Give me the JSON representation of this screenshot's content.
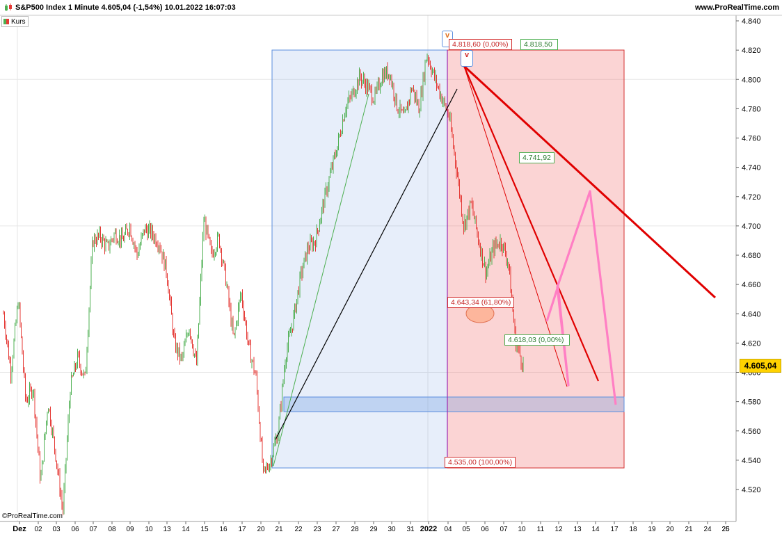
{
  "header": {
    "title": "S&P500 Index 1 Minute 4.605,04 (-1,54%) 10.01.2022 16:07:03",
    "site": "www.ProRealTime.com"
  },
  "legend": {
    "label": "Kurs"
  },
  "copyright": "©ProRealTime.com",
  "colors": {
    "up": "#4caf50",
    "down": "#e53935",
    "trend": "#e00000",
    "projection": "#ff7fc4",
    "zone_blue": "#5b8ede",
    "zone_red": "#d32f2f",
    "last_price_bg": "#ffd200"
  },
  "annotations": {
    "last_price": "4.605,04",
    "fib_0_top": "4.818,60 (0,00%)",
    "high_right": "4.818,50",
    "level_mid": "4.741,92",
    "fib_618": "4.643,34 (61,80%)",
    "fib_0_low": "4.618,03 (0,00%)",
    "fib_100": "4.535,00 (100,00%)",
    "marker_left": "v",
    "marker_right": "v"
  },
  "chart_data": {
    "type": "line",
    "title": "S&P500 Index 1 Minute",
    "xlabel": "",
    "ylabel": "",
    "ylim": [
      4500,
      4845
    ],
    "y_ticks": [
      4520,
      4540,
      4560,
      4580,
      4600,
      4620,
      4640,
      4660,
      4680,
      4700,
      4720,
      4740,
      4760,
      4780,
      4800,
      4820,
      4840
    ],
    "y_tick_labels": [
      "4.520",
      "4.540",
      "4.560",
      "4.580",
      "4.600",
      "4.620",
      "4.640",
      "4.660",
      "4.680",
      "4.700",
      "4.720",
      "4.740",
      "4.760",
      "4.780",
      "4.800",
      "4.820",
      "4.840"
    ],
    "y_major_grid": [
      4600,
      4700,
      4800
    ],
    "x_labels": [
      "Dez",
      "02",
      "03",
      "06",
      "07",
      "08",
      "09",
      "10",
      "13",
      "14",
      "15",
      "16",
      "17",
      "20",
      "21",
      "22",
      "23",
      "27",
      "28",
      "29",
      "30",
      "31",
      "2022",
      "04",
      "05",
      "06",
      "07",
      "10",
      "11",
      "12",
      "13",
      "14",
      "17",
      "18",
      "19",
      "20",
      "21",
      "24",
      "25",
      "26"
    ],
    "x_label_bold": [
      "Dez",
      "2022"
    ],
    "series": [
      {
        "values": [
          4640,
          4600,
          4650,
          4580,
          4590,
          4525,
          4580,
          4545,
          4505,
          4590,
          4610,
          4595,
          4690,
          4693,
          4685,
          4695,
          4690,
          4700,
          4680,
          4698,
          4695,
          4688,
          4668,
          4620,
          4608,
          4632,
          4605,
          4705,
          4680,
          4692,
          4662,
          4622,
          4655,
          4618,
          4597,
          4530,
          4540,
          4560,
          4612,
          4635,
          4665,
          4685,
          4690,
          4713,
          4735,
          4755,
          4780,
          4790,
          4802,
          4795,
          4787,
          4803,
          4805,
          4782,
          4773,
          4795,
          4780,
          4818,
          4802,
          4788,
          4775,
          4740,
          4700,
          4715,
          4690,
          4668,
          4685,
          4690,
          4675,
          4620,
          4605
        ]
      }
    ]
  }
}
